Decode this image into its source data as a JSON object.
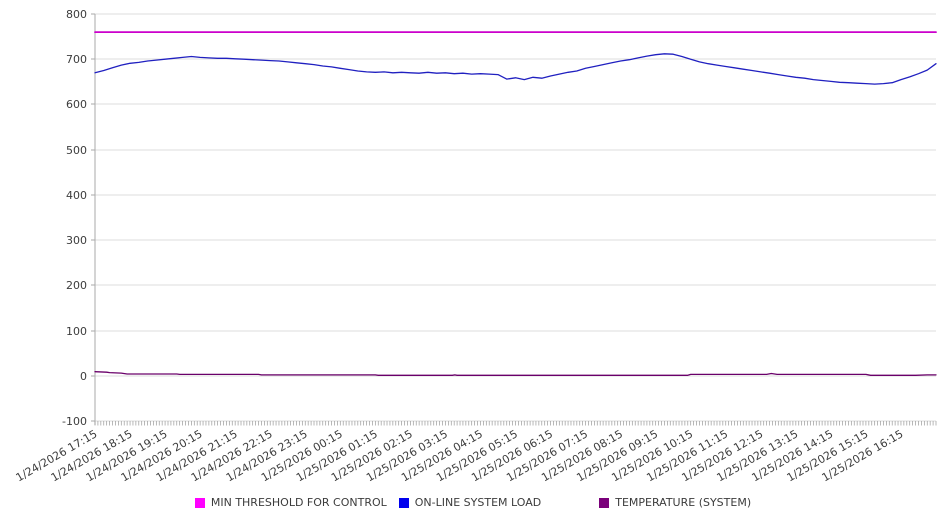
{
  "page": {
    "background": "#ffffff"
  },
  "chart_data": {
    "type": "line",
    "title": "",
    "grid": "horizontal-only",
    "legend_position": "bottom",
    "colors": {
      "grid": "#dddddd",
      "axis": "#aaaaaa",
      "tick": "#999999",
      "label_text": "#3c3c3c"
    },
    "y_axis": {
      "min": -100,
      "max": 800,
      "ticks": [
        800,
        700,
        600,
        500,
        400,
        300,
        200,
        100,
        0,
        -100
      ]
    },
    "x_axis": {
      "total_minutes": 1440,
      "minor_tick_interval_minutes": 5,
      "major_tick_interval_minutes": 60,
      "tick_labels": [
        "1/24/2026 17:15",
        "1/24/2026 18:15",
        "1/24/2026 19:15",
        "1/24/2026 20:15",
        "1/24/2026 21:15",
        "1/24/2026 22:15",
        "1/24/2026 23:15",
        "1/25/2026 00:15",
        "1/25/2026 01:15",
        "1/25/2026 02:15",
        "1/25/2026 03:15",
        "1/25/2026 04:15",
        "1/25/2026 05:15",
        "1/25/2026 06:15",
        "1/25/2026 07:15",
        "1/25/2026 08:15",
        "1/25/2026 09:15",
        "1/25/2026 10:15",
        "1/25/2026 11:15",
        "1/25/2026 12:15",
        "1/25/2026 13:15",
        "1/25/2026 14:15",
        "1/25/2026 15:15",
        "1/25/2026 16:15"
      ],
      "label_rotation_deg": -30
    },
    "series": [
      {
        "name": "MIN THRESHOLD FOR CONTROL",
        "type": "constant",
        "value": 760,
        "color": "#cc00cc",
        "legend_color": "#ff00ff",
        "stroke_width": 1.8
      },
      {
        "name": "ON-LINE SYSTEM LOAD",
        "type": "sampled",
        "t0": 0,
        "dt_minutes": 15,
        "values": [
          670,
          675,
          681,
          687,
          691,
          693,
          696,
          698,
          700,
          702,
          704,
          706,
          704,
          703,
          702,
          702,
          701,
          700,
          699,
          698,
          697,
          696,
          694,
          692,
          690,
          688,
          685,
          683,
          680,
          677,
          674,
          672,
          671,
          672,
          670,
          671,
          670,
          669,
          671,
          669,
          670,
          668,
          669,
          667,
          668,
          667,
          666,
          656,
          659,
          655,
          660,
          658,
          663,
          667,
          671,
          674,
          680,
          684,
          688,
          692,
          696,
          699,
          703,
          707,
          710,
          712,
          711,
          706,
          700,
          694,
          690,
          687,
          684,
          681,
          678,
          675,
          672,
          669,
          666,
          663,
          660,
          658,
          655,
          653,
          651,
          649,
          648,
          647,
          646,
          645,
          646,
          648,
          655,
          661,
          668,
          676,
          690
        ],
        "color": "#2020c0",
        "legend_color": "#0000ee",
        "stroke_width": 1.3
      },
      {
        "name": "TEMPERATURE (SYSTEM)",
        "type": "points",
        "points": [
          [
            0,
            9
          ],
          [
            20,
            8
          ],
          [
            25,
            7
          ],
          [
            45,
            6
          ],
          [
            55,
            4
          ],
          [
            140,
            4
          ],
          [
            145,
            3
          ],
          [
            280,
            3
          ],
          [
            285,
            2
          ],
          [
            480,
            2
          ],
          [
            485,
            1
          ],
          [
            612,
            1
          ],
          [
            616,
            2
          ],
          [
            620,
            1
          ],
          [
            1015,
            1
          ],
          [
            1020,
            3
          ],
          [
            1150,
            3
          ],
          [
            1158,
            5
          ],
          [
            1168,
            3
          ],
          [
            1320,
            3
          ],
          [
            1328,
            1
          ],
          [
            1405,
            1
          ],
          [
            1425,
            2
          ],
          [
            1440,
            2
          ]
        ],
        "color": "#6a006a",
        "legend_color": "#7a007a",
        "stroke_width": 1.3
      }
    ]
  }
}
